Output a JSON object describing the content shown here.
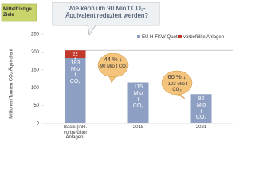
{
  "chart_data": {
    "type": "bar",
    "stacked": true,
    "title": "Wie kann um 90 Mio t CO₂-Äquivalent reduziert werden?",
    "badge": "Mittelfristige Ziele",
    "y_label": "Millionen Tonnen CO₂ Äquivalent",
    "categories": [
      "Basis (inkl. vorbefüllter Anlagen)",
      "2018",
      "2021"
    ],
    "series": [
      {
        "name": "EU H-FKW-Quote",
        "color": "#8d9fc2",
        "values": [
          183,
          115,
          82
        ],
        "value_labels": [
          "183 Mio t CO₂",
          "115 Mio t CO₂",
          "82 Mio t CO₂"
        ]
      },
      {
        "name": "vorbefüllte Anlagen",
        "color": "#c0392b",
        "values": [
          22,
          null,
          null
        ],
        "value_labels": [
          "22",
          null,
          null
        ]
      }
    ],
    "plus_sign": "+",
    "annotations": [
      {
        "text": "44 % ↓",
        "subtext": "-90 Mio t CO₂"
      },
      {
        "text": "60 % ↓",
        "subtext": "-123 Mio t CO₂"
      }
    ],
    "ylim": [
      0,
      250
    ],
    "yticks": [
      0,
      50,
      100,
      150,
      200,
      250
    ],
    "grid": false
  }
}
